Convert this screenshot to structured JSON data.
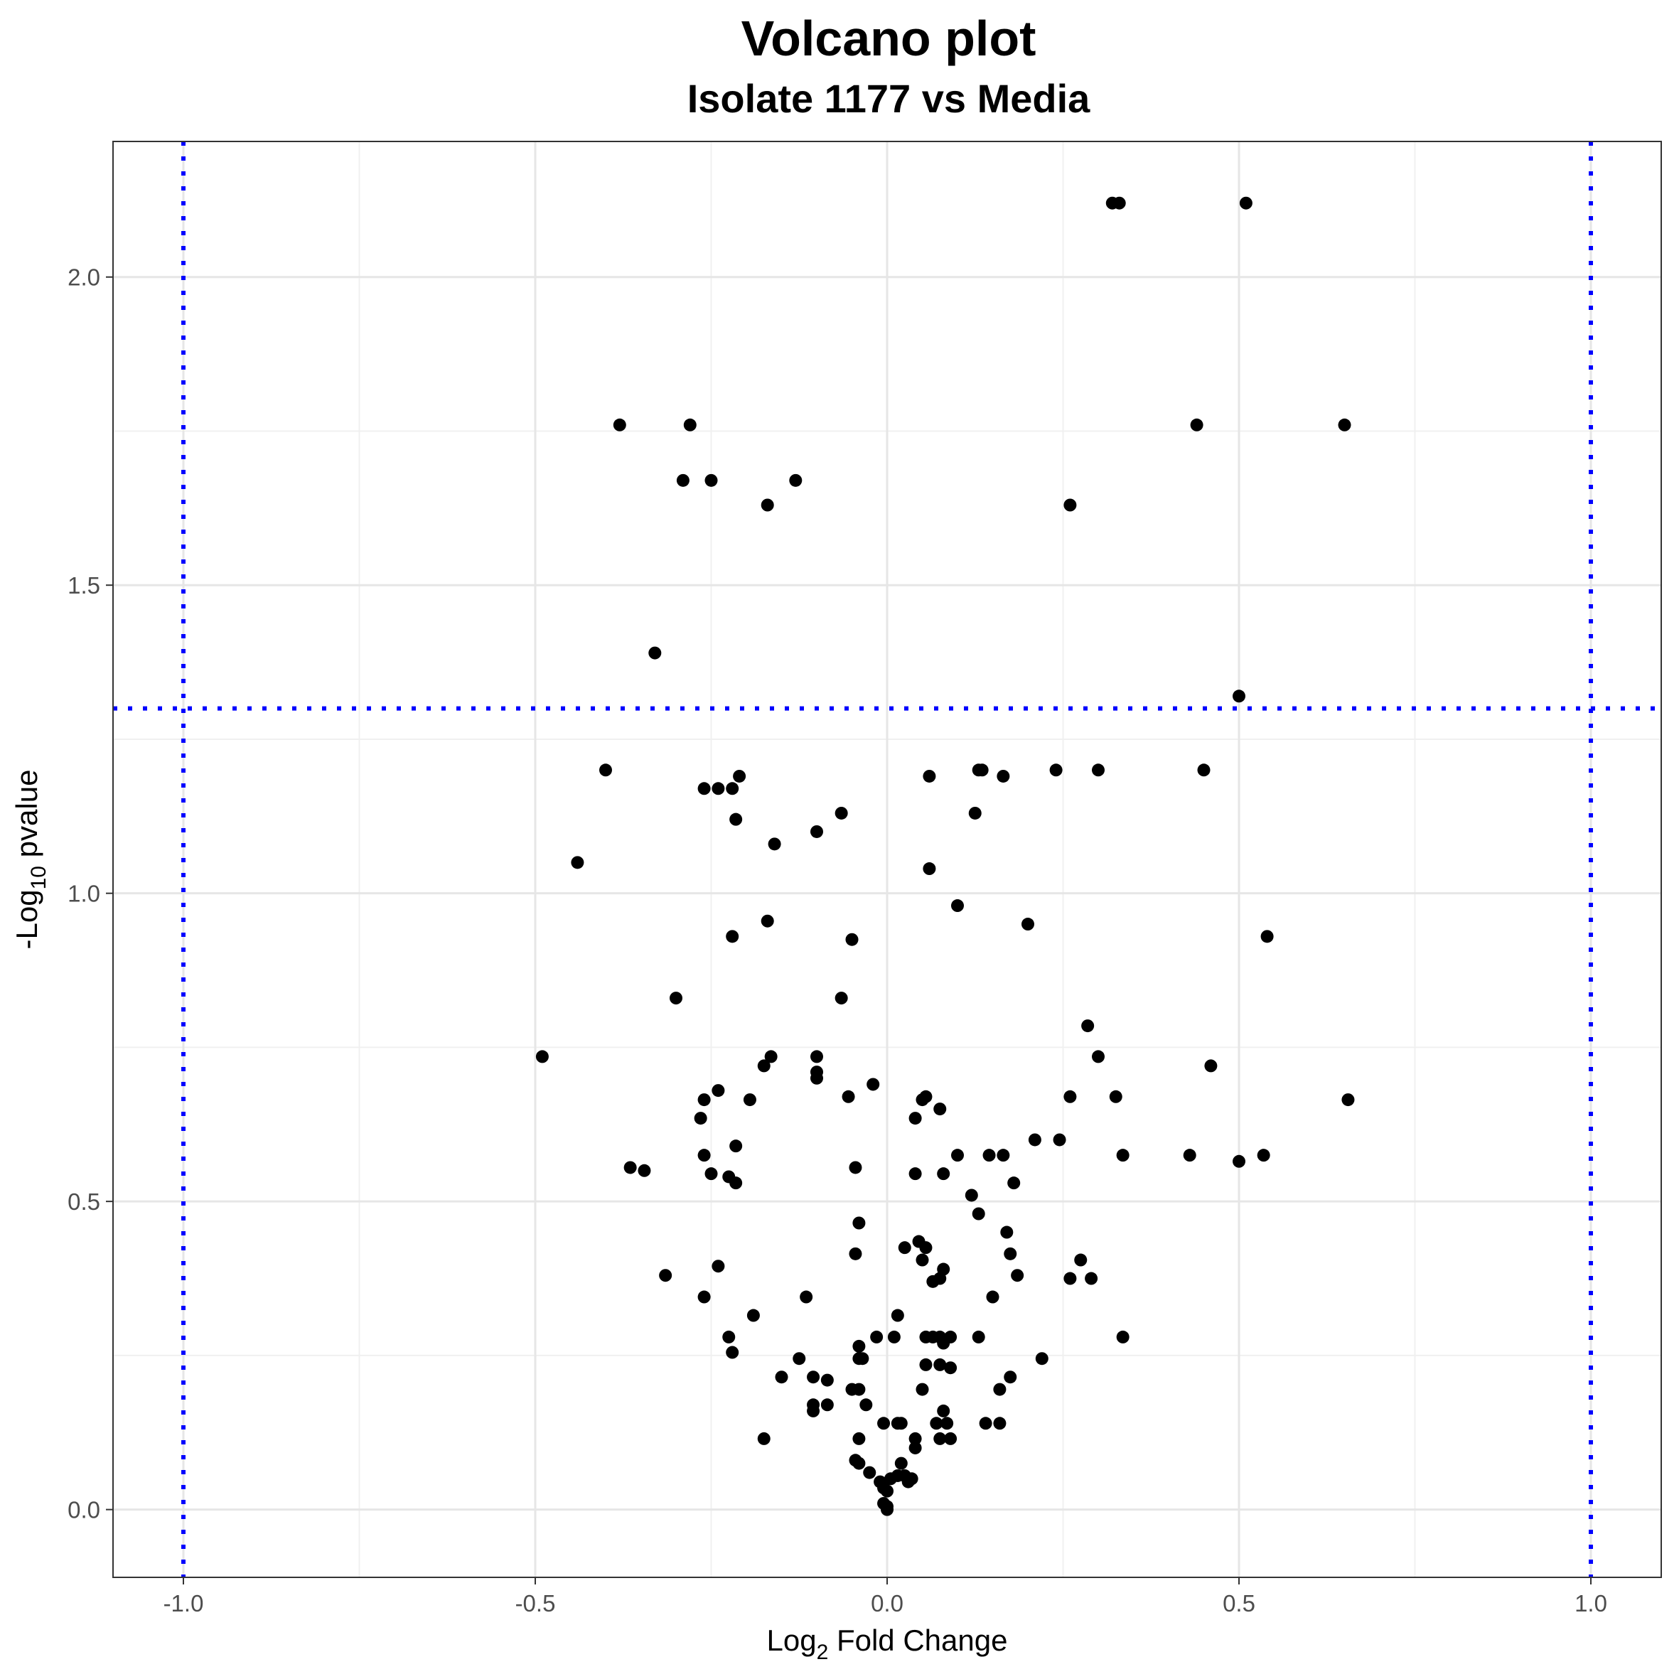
{
  "chart_data": {
    "type": "scatter",
    "title": "Volcano plot",
    "subtitle": "Isolate 1177 vs Media",
    "xlabel": {
      "prefix": "Log",
      "sub": "2",
      "suffix": " Fold Change"
    },
    "ylabel": {
      "prefix": "-Log",
      "sub": "10",
      "suffix": " pvalue"
    },
    "xlim": [
      -1.1,
      1.1
    ],
    "ylim": [
      -0.11,
      2.22
    ],
    "x_ticks": [
      -1.0,
      -0.5,
      0.0,
      0.5,
      1.0
    ],
    "x_tick_labels": [
      "-1.0",
      "-0.5",
      "0.0",
      "0.5",
      "1.0"
    ],
    "y_ticks": [
      0.0,
      0.5,
      1.0,
      1.5,
      2.0
    ],
    "y_tick_labels": [
      "0.0",
      "0.5",
      "1.0",
      "1.5",
      "2.0"
    ],
    "grid": true,
    "reference_lines": {
      "vertical_x": [
        -1.0,
        1.0
      ],
      "horizontal_y": [
        1.3
      ],
      "color": "#0000ff",
      "style": "dotted"
    },
    "point_color": "#000000",
    "points": [
      [
        0.32,
        2.12
      ],
      [
        0.33,
        2.12
      ],
      [
        0.51,
        2.12
      ],
      [
        -0.38,
        1.76
      ],
      [
        -0.28,
        1.76
      ],
      [
        0.44,
        1.76
      ],
      [
        0.65,
        1.76
      ],
      [
        -0.29,
        1.67
      ],
      [
        -0.25,
        1.67
      ],
      [
        -0.13,
        1.67
      ],
      [
        -0.17,
        1.63
      ],
      [
        0.26,
        1.63
      ],
      [
        -0.33,
        1.39
      ],
      [
        0.5,
        1.32
      ],
      [
        -0.4,
        1.2
      ],
      [
        0.13,
        1.2
      ],
      [
        0.135,
        1.2
      ],
      [
        0.24,
        1.2
      ],
      [
        0.3,
        1.2
      ],
      [
        0.45,
        1.2
      ],
      [
        -0.21,
        1.19
      ],
      [
        0.06,
        1.19
      ],
      [
        0.165,
        1.19
      ],
      [
        -0.26,
        1.17
      ],
      [
        -0.24,
        1.17
      ],
      [
        -0.22,
        1.17
      ],
      [
        -0.215,
        1.12
      ],
      [
        -0.065,
        1.13
      ],
      [
        0.125,
        1.13
      ],
      [
        -0.1,
        1.1
      ],
      [
        -0.16,
        1.08
      ],
      [
        -0.44,
        1.05
      ],
      [
        0.06,
        1.04
      ],
      [
        0.1,
        0.98
      ],
      [
        -0.17,
        0.955
      ],
      [
        0.2,
        0.95
      ],
      [
        -0.22,
        0.93
      ],
      [
        -0.05,
        0.925
      ],
      [
        0.54,
        0.93
      ],
      [
        -0.3,
        0.83
      ],
      [
        -0.065,
        0.83
      ],
      [
        0.285,
        0.785
      ],
      [
        -0.49,
        0.735
      ],
      [
        -0.165,
        0.735
      ],
      [
        -0.1,
        0.735
      ],
      [
        0.3,
        0.735
      ],
      [
        -0.175,
        0.72
      ],
      [
        0.46,
        0.72
      ],
      [
        -0.1,
        0.71
      ],
      [
        -0.1,
        0.7
      ],
      [
        -0.02,
        0.69
      ],
      [
        -0.24,
        0.68
      ],
      [
        -0.055,
        0.67
      ],
      [
        0.055,
        0.67
      ],
      [
        0.26,
        0.67
      ],
      [
        0.325,
        0.67
      ],
      [
        -0.26,
        0.665
      ],
      [
        -0.195,
        0.665
      ],
      [
        0.05,
        0.665
      ],
      [
        0.655,
        0.665
      ],
      [
        0.075,
        0.65
      ],
      [
        -0.265,
        0.635
      ],
      [
        0.04,
        0.635
      ],
      [
        0.21,
        0.6
      ],
      [
        0.245,
        0.6
      ],
      [
        -0.215,
        0.59
      ],
      [
        -0.26,
        0.575
      ],
      [
        0.1,
        0.575
      ],
      [
        0.145,
        0.575
      ],
      [
        0.165,
        0.575
      ],
      [
        0.335,
        0.575
      ],
      [
        0.43,
        0.575
      ],
      [
        0.535,
        0.575
      ],
      [
        0.5,
        0.565
      ],
      [
        -0.365,
        0.555
      ],
      [
        -0.045,
        0.555
      ],
      [
        -0.345,
        0.55
      ],
      [
        -0.25,
        0.545
      ],
      [
        0.04,
        0.545
      ],
      [
        0.08,
        0.545
      ],
      [
        -0.225,
        0.54
      ],
      [
        -0.215,
        0.53
      ],
      [
        0.18,
        0.53
      ],
      [
        0.12,
        0.51
      ],
      [
        0.13,
        0.48
      ],
      [
        -0.04,
        0.465
      ],
      [
        0.17,
        0.45
      ],
      [
        0.045,
        0.435
      ],
      [
        0.025,
        0.425
      ],
      [
        0.055,
        0.425
      ],
      [
        -0.045,
        0.415
      ],
      [
        0.175,
        0.415
      ],
      [
        0.05,
        0.405
      ],
      [
        0.275,
        0.405
      ],
      [
        -0.24,
        0.395
      ],
      [
        0.08,
        0.39
      ],
      [
        -0.315,
        0.38
      ],
      [
        0.185,
        0.38
      ],
      [
        0.075,
        0.375
      ],
      [
        0.065,
        0.37
      ],
      [
        0.26,
        0.375
      ],
      [
        0.29,
        0.375
      ],
      [
        -0.26,
        0.345
      ],
      [
        -0.115,
        0.345
      ],
      [
        0.15,
        0.345
      ],
      [
        -0.19,
        0.315
      ],
      [
        0.015,
        0.315
      ],
      [
        -0.225,
        0.28
      ],
      [
        -0.015,
        0.28
      ],
      [
        0.01,
        0.28
      ],
      [
        0.055,
        0.28
      ],
      [
        0.065,
        0.28
      ],
      [
        0.075,
        0.28
      ],
      [
        0.09,
        0.28
      ],
      [
        0.13,
        0.28
      ],
      [
        0.335,
        0.28
      ],
      [
        0.08,
        0.27
      ],
      [
        -0.04,
        0.265
      ],
      [
        -0.22,
        0.255
      ],
      [
        -0.125,
        0.245
      ],
      [
        -0.04,
        0.245
      ],
      [
        -0.035,
        0.245
      ],
      [
        0.22,
        0.245
      ],
      [
        0.055,
        0.235
      ],
      [
        0.075,
        0.235
      ],
      [
        0.09,
        0.23
      ],
      [
        -0.15,
        0.215
      ],
      [
        -0.105,
        0.215
      ],
      [
        -0.085,
        0.21
      ],
      [
        0.175,
        0.215
      ],
      [
        -0.05,
        0.195
      ],
      [
        -0.04,
        0.195
      ],
      [
        0.05,
        0.195
      ],
      [
        0.16,
        0.195
      ],
      [
        -0.105,
        0.17
      ],
      [
        -0.085,
        0.17
      ],
      [
        -0.03,
        0.17
      ],
      [
        -0.105,
        0.16
      ],
      [
        0.08,
        0.16
      ],
      [
        -0.005,
        0.14
      ],
      [
        0.015,
        0.14
      ],
      [
        0.02,
        0.14
      ],
      [
        0.07,
        0.14
      ],
      [
        0.085,
        0.14
      ],
      [
        0.14,
        0.14
      ],
      [
        0.16,
        0.14
      ],
      [
        -0.175,
        0.115
      ],
      [
        -0.04,
        0.115
      ],
      [
        0.04,
        0.115
      ],
      [
        0.075,
        0.115
      ],
      [
        0.09,
        0.115
      ],
      [
        0.04,
        0.1
      ],
      [
        -0.045,
        0.08
      ],
      [
        -0.04,
        0.075
      ],
      [
        0.02,
        0.075
      ],
      [
        -0.025,
        0.06
      ],
      [
        0.015,
        0.055
      ],
      [
        0.025,
        0.055
      ],
      [
        0.035,
        0.05
      ],
      [
        -0.01,
        0.045
      ],
      [
        0.005,
        0.05
      ],
      [
        0.03,
        0.045
      ],
      [
        -0.005,
        0.035
      ],
      [
        0.0,
        0.03
      ],
      [
        -0.005,
        0.01
      ],
      [
        0.0,
        0.005
      ],
      [
        0.0,
        0.0
      ]
    ]
  }
}
